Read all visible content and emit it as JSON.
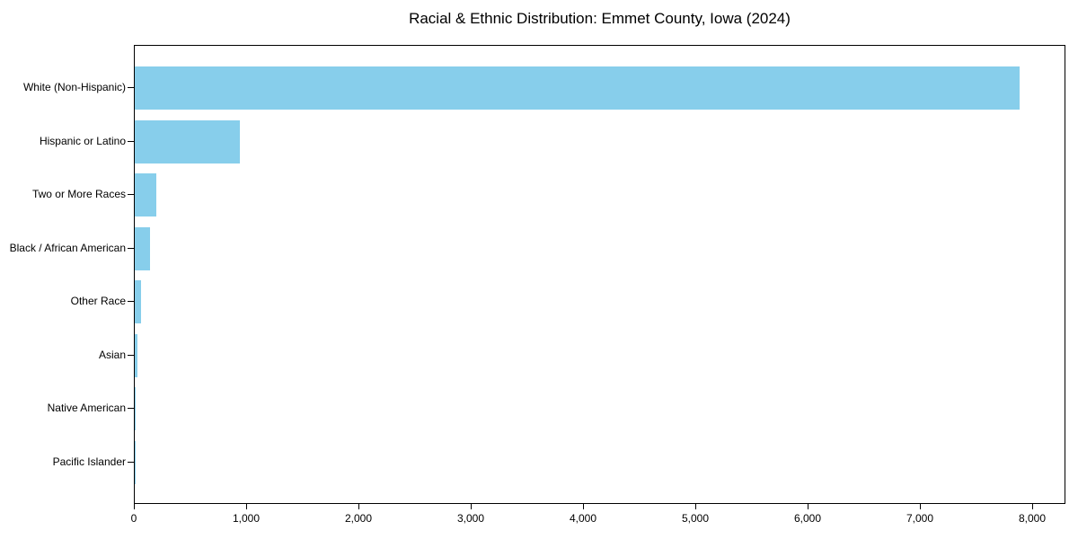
{
  "chart_data": {
    "type": "bar",
    "orientation": "horizontal",
    "title": "Racial & Ethnic Distribution: Emmet County, Iowa (2024)",
    "categories": [
      "White (Non-Hispanic)",
      "Hispanic or Latino",
      "Two or More Races",
      "Black / African American",
      "Other Race",
      "Asian",
      "Native American",
      "Pacific Islander"
    ],
    "values": [
      7895,
      935,
      195,
      140,
      55,
      25,
      5,
      2
    ],
    "xlabel": "",
    "ylabel": "",
    "xlim": [
      0,
      8296
    ],
    "x_ticks": [
      0,
      1000,
      2000,
      3000,
      4000,
      5000,
      6000,
      7000,
      8000
    ],
    "x_tick_labels": [
      "0",
      "1,000",
      "2,000",
      "3,000",
      "4,000",
      "5,000",
      "6,000",
      "7,000",
      "8,000"
    ],
    "grid": false,
    "legend": null,
    "bar_color": "#87CEEB",
    "axis_color": "#000000",
    "background_color": "#FFFFFF"
  }
}
